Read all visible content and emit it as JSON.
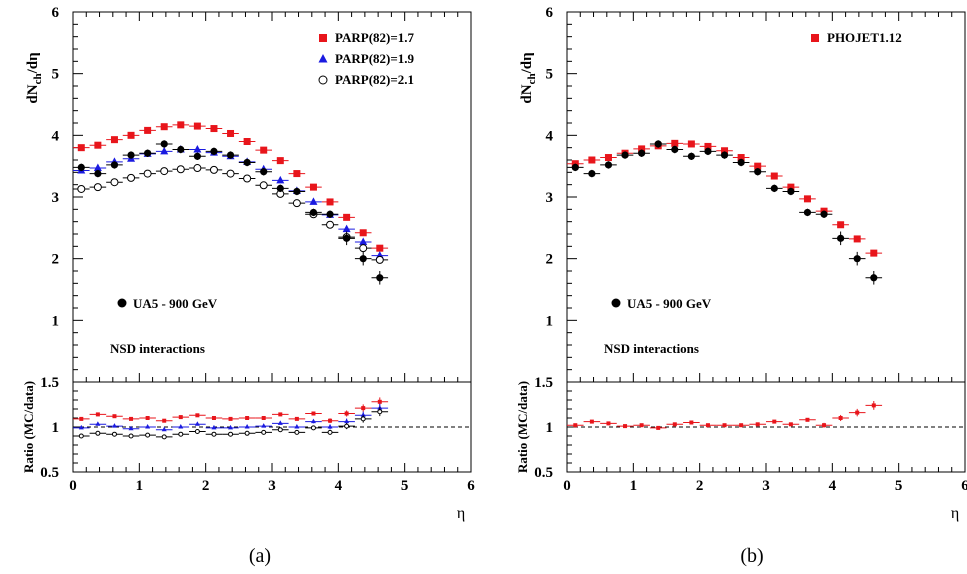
{
  "chart_data": [
    {
      "type": "scatter",
      "panel_caption": "(a)",
      "ylabel_main": "dN_ch/dη",
      "ylabel_ratio": "Ratio (MC/data)",
      "xlabel": "η",
      "xlim": [
        0,
        6
      ],
      "ylim_main": [
        0,
        6
      ],
      "ylim_ratio": [
        0.5,
        1.5
      ],
      "x_ticks": [
        "0",
        "1",
        "2",
        "3",
        "4",
        "5",
        "6"
      ],
      "y_ticks_main": [
        "1",
        "2",
        "3",
        "4",
        "5",
        "6"
      ],
      "y_ticks_ratio": [
        "0.5",
        "1",
        "1.5"
      ],
      "data_label": "UA5 - 900 GeV",
      "annotation": "NSD interactions",
      "legend_position": "top-right",
      "data": {
        "x": [
          0.125,
          0.375,
          0.625,
          0.875,
          1.125,
          1.375,
          1.625,
          1.875,
          2.125,
          2.375,
          2.625,
          2.875,
          3.125,
          3.375,
          3.625,
          3.875,
          4.125,
          4.375,
          4.625
        ],
        "y": [
          3.48,
          3.38,
          3.52,
          3.68,
          3.71,
          3.86,
          3.77,
          3.66,
          3.74,
          3.68,
          3.56,
          3.41,
          3.14,
          3.09,
          2.75,
          2.72,
          2.33,
          2.0,
          1.69
        ]
      },
      "series": [
        {
          "name": "PARP(82)=1.7",
          "marker": "square",
          "color": "#e8151b",
          "values": [
            3.8,
            3.84,
            3.93,
            4.0,
            4.08,
            4.14,
            4.17,
            4.15,
            4.11,
            4.03,
            3.9,
            3.76,
            3.59,
            3.38,
            3.16,
            2.92,
            2.67,
            2.42,
            2.17
          ],
          "ratio": [
            1.09,
            1.14,
            1.12,
            1.09,
            1.1,
            1.07,
            1.11,
            1.13,
            1.1,
            1.09,
            1.1,
            1.1,
            1.14,
            1.09,
            1.15,
            1.07,
            1.15,
            1.21,
            1.28
          ]
        },
        {
          "name": "PARP(82)=1.9",
          "marker": "triangle",
          "color": "#1a1ae0",
          "values": [
            3.43,
            3.47,
            3.57,
            3.62,
            3.7,
            3.74,
            3.77,
            3.77,
            3.72,
            3.66,
            3.57,
            3.45,
            3.27,
            3.1,
            2.92,
            2.71,
            2.48,
            2.27,
            2.05
          ],
          "ratio": [
            0.99,
            1.03,
            1.01,
            0.98,
            1.0,
            0.97,
            1.0,
            1.03,
            0.99,
            0.99,
            1.0,
            1.01,
            1.04,
            1.0,
            1.06,
            1.0,
            1.06,
            1.13,
            1.21
          ]
        },
        {
          "name": "PARP(82)=2.1",
          "marker": "open-circle",
          "color": "#000000",
          "values": [
            3.13,
            3.16,
            3.24,
            3.31,
            3.38,
            3.42,
            3.45,
            3.47,
            3.44,
            3.38,
            3.3,
            3.19,
            3.05,
            2.9,
            2.72,
            2.55,
            2.35,
            2.17,
            1.98
          ],
          "ratio": [
            0.9,
            0.93,
            0.92,
            0.9,
            0.91,
            0.89,
            0.92,
            0.95,
            0.92,
            0.92,
            0.93,
            0.94,
            0.97,
            0.94,
            0.99,
            0.94,
            1.01,
            1.09,
            1.17
          ]
        }
      ]
    },
    {
      "type": "scatter",
      "panel_caption": "(b)",
      "ylabel_main": "dN_ch/dη",
      "ylabel_ratio": "Ratio (MC/data)",
      "xlabel": "η",
      "xlim": [
        0,
        6
      ],
      "ylim_main": [
        0,
        6
      ],
      "ylim_ratio": [
        0.5,
        1.5
      ],
      "x_ticks": [
        "0",
        "1",
        "2",
        "3",
        "4",
        "5",
        "6"
      ],
      "y_ticks_main": [
        "1",
        "2",
        "3",
        "4",
        "5",
        "6"
      ],
      "y_ticks_ratio": [
        "0.5",
        "1",
        "1.5"
      ],
      "data_label": "UA5 - 900 GeV",
      "annotation": "NSD interactions",
      "legend_position": "top-right",
      "data": {
        "x": [
          0.125,
          0.375,
          0.625,
          0.875,
          1.125,
          1.375,
          1.625,
          1.875,
          2.125,
          2.375,
          2.625,
          2.875,
          3.125,
          3.375,
          3.625,
          3.875,
          4.125,
          4.375,
          4.625
        ],
        "y": [
          3.48,
          3.38,
          3.52,
          3.68,
          3.71,
          3.86,
          3.77,
          3.66,
          3.74,
          3.68,
          3.56,
          3.41,
          3.14,
          3.09,
          2.75,
          2.72,
          2.33,
          2.0,
          1.69
        ]
      },
      "series": [
        {
          "name": "PHOJET1.12",
          "marker": "square",
          "color": "#e8151b",
          "values": [
            3.54,
            3.6,
            3.64,
            3.71,
            3.78,
            3.83,
            3.87,
            3.86,
            3.82,
            3.75,
            3.64,
            3.5,
            3.34,
            3.16,
            2.97,
            2.77,
            2.55,
            2.32,
            2.09
          ],
          "ratio": [
            1.02,
            1.06,
            1.04,
            1.01,
            1.02,
            0.99,
            1.03,
            1.05,
            1.02,
            1.02,
            1.02,
            1.03,
            1.06,
            1.03,
            1.08,
            1.02,
            1.1,
            1.16,
            1.24
          ]
        }
      ]
    }
  ]
}
